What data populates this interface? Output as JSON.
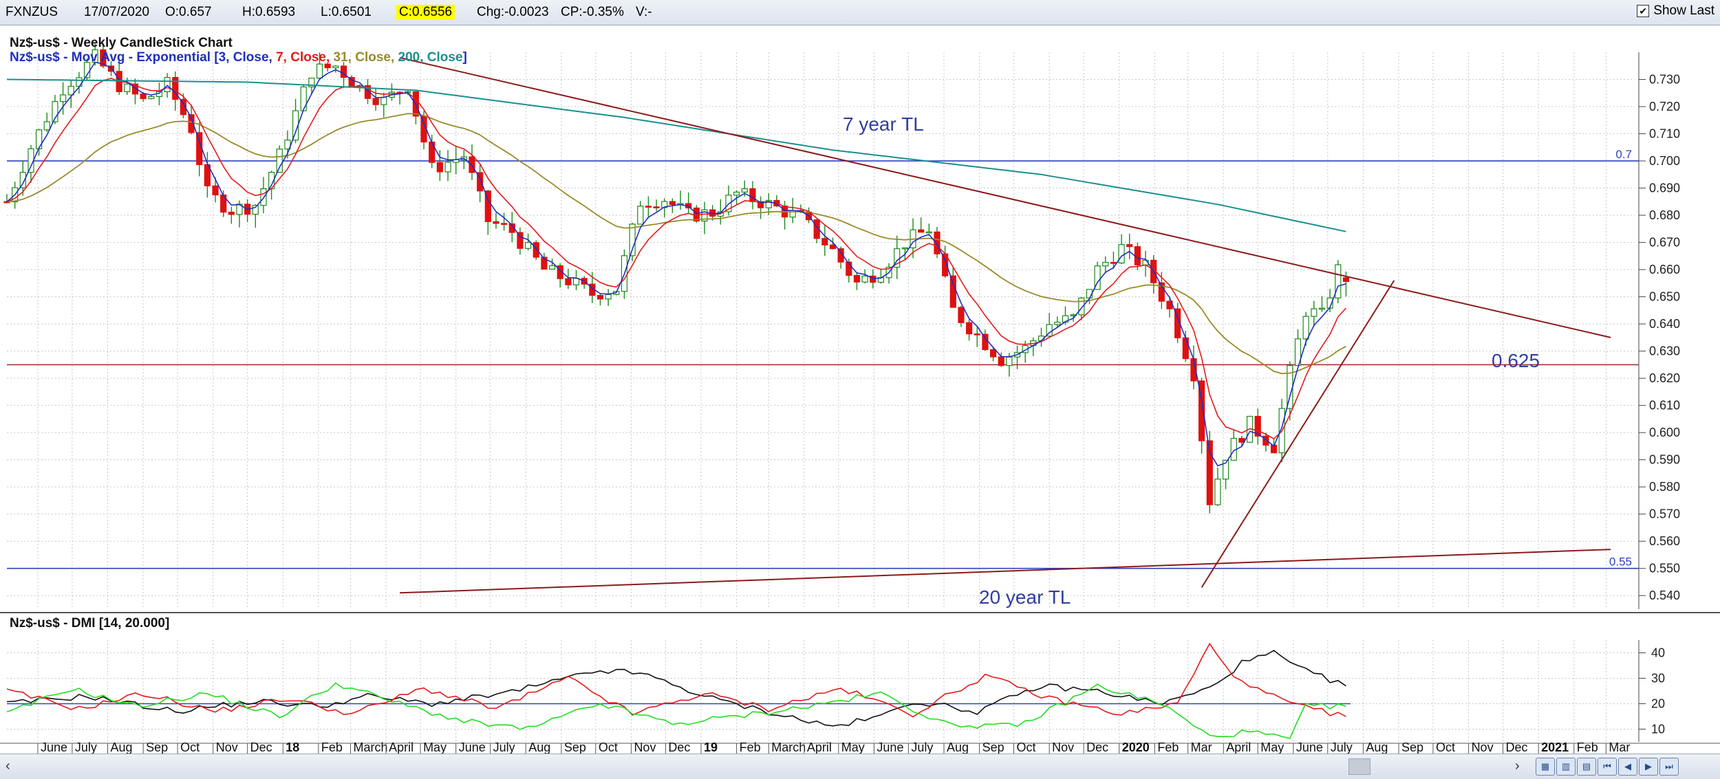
{
  "header": {
    "symbol": "FXNZUS",
    "date": "17/07/2020",
    "open": "O:0.657",
    "high": "H:0.6593",
    "low": "L:0.6501",
    "close": "C:0.6556",
    "change": "Chg:-0.0023",
    "change_pct": "CP:-0.35%",
    "volume": "V:-",
    "show_last_label": "Show Last"
  },
  "chart_data": [
    {
      "type": "candlestick",
      "title": "Nz$-us$ - Weekly CandleStick Chart",
      "subtitle": "Nz$-us$ - Mov Avg - Exponential [3, Close, 7, Close, 31, Close, 200, Close]",
      "ma_legend": [
        {
          "text": "Nz$-us$ - Mov Avg - Exponential [3, Close, ",
          "color": "#1f2fbf"
        },
        {
          "text": "7, Close, ",
          "color": "#e31a1a"
        },
        {
          "text": "31, Close, ",
          "color": "#9a8a2a"
        },
        {
          "text": "200, Close",
          "color": "#1a8f8f"
        },
        {
          "text": "]",
          "color": "#1f2fbf"
        }
      ],
      "ylim": [
        0.535,
        0.74
      ],
      "y_ticks": [
        0.54,
        0.55,
        0.56,
        0.57,
        0.58,
        0.59,
        0.6,
        0.61,
        0.62,
        0.63,
        0.64,
        0.65,
        0.66,
        0.67,
        0.68,
        0.69,
        0.7,
        0.71,
        0.72,
        0.73
      ],
      "y_tick_labels": [
        "0.540",
        "0.550",
        "0.560",
        "0.570",
        "0.580",
        "0.590",
        "0.600",
        "0.610",
        "0.620",
        "0.630",
        "0.640",
        "0.650",
        "0.660",
        "0.670",
        "0.680",
        "0.690",
        "0.700",
        "0.710",
        "0.720",
        "0.730"
      ],
      "x_start": "2017-05-05",
      "x_end": "2021-03-26",
      "x_tick_labels": [
        {
          "label": "June",
          "date": "2017-06-01"
        },
        {
          "label": "July",
          "date": "2017-07-01"
        },
        {
          "label": "Aug",
          "date": "2017-08-01"
        },
        {
          "label": "Sep",
          "date": "2017-09-01"
        },
        {
          "label": "Oct",
          "date": "2017-10-01"
        },
        {
          "label": "Nov",
          "date": "2017-11-01"
        },
        {
          "label": "Dec",
          "date": "2017-12-01"
        },
        {
          "label": "18",
          "date": "2018-01-01",
          "bold": true
        },
        {
          "label": "Feb",
          "date": "2018-02-01"
        },
        {
          "label": "March",
          "date": "2018-03-01"
        },
        {
          "label": "April",
          "date": "2018-04-01"
        },
        {
          "label": "May",
          "date": "2018-05-01"
        },
        {
          "label": "June",
          "date": "2018-06-01"
        },
        {
          "label": "July",
          "date": "2018-07-01"
        },
        {
          "label": "Aug",
          "date": "2018-08-01"
        },
        {
          "label": "Sep",
          "date": "2018-09-01"
        },
        {
          "label": "Oct",
          "date": "2018-10-01"
        },
        {
          "label": "Nov",
          "date": "2018-11-01"
        },
        {
          "label": "Dec",
          "date": "2018-12-01"
        },
        {
          "label": "19",
          "date": "2019-01-01",
          "bold": true
        },
        {
          "label": "Feb",
          "date": "2019-02-01"
        },
        {
          "label": "March",
          "date": "2019-03-01"
        },
        {
          "label": "April",
          "date": "2019-04-01"
        },
        {
          "label": "May",
          "date": "2019-05-01"
        },
        {
          "label": "June",
          "date": "2019-06-01"
        },
        {
          "label": "July",
          "date": "2019-07-01"
        },
        {
          "label": "Aug",
          "date": "2019-08-01"
        },
        {
          "label": "Sep",
          "date": "2019-09-01"
        },
        {
          "label": "Oct",
          "date": "2019-10-01"
        },
        {
          "label": "Nov",
          "date": "2019-11-01"
        },
        {
          "label": "Dec",
          "date": "2019-12-01"
        },
        {
          "label": "2020",
          "date": "2020-01-01",
          "bold": true
        },
        {
          "label": "Feb",
          "date": "2020-02-01"
        },
        {
          "label": "Mar",
          "date": "2020-03-01"
        },
        {
          "label": "April",
          "date": "2020-04-01"
        },
        {
          "label": "May",
          "date": "2020-05-01"
        },
        {
          "label": "June",
          "date": "2020-06-01"
        },
        {
          "label": "July",
          "date": "2020-07-01"
        },
        {
          "label": "Aug",
          "date": "2020-08-01"
        },
        {
          "label": "Sep",
          "date": "2020-09-01"
        },
        {
          "label": "Oct",
          "date": "2020-10-01"
        },
        {
          "label": "Nov",
          "date": "2020-11-01"
        },
        {
          "label": "Dec",
          "date": "2020-12-01"
        },
        {
          "label": "2021",
          "date": "2021-01-01",
          "bold": true
        },
        {
          "label": "Feb",
          "date": "2021-02-01"
        },
        {
          "label": "Mar",
          "date": "2021-03-01"
        }
      ],
      "close_path": [
        [
          "2017-05-05",
          0.685
        ],
        [
          "2017-05-26",
          0.705
        ],
        [
          "2017-06-23",
          0.727
        ],
        [
          "2017-07-21",
          0.738
        ],
        [
          "2017-08-11",
          0.728
        ],
        [
          "2017-09-01",
          0.722
        ],
        [
          "2017-09-22",
          0.728
        ],
        [
          "2017-10-13",
          0.712
        ],
        [
          "2017-10-27",
          0.688
        ],
        [
          "2017-11-17",
          0.682
        ],
        [
          "2017-12-08",
          0.684
        ],
        [
          "2017-12-29",
          0.702
        ],
        [
          "2018-01-26",
          0.733
        ],
        [
          "2018-02-16",
          0.735
        ],
        [
          "2018-03-09",
          0.727
        ],
        [
          "2018-03-30",
          0.722
        ],
        [
          "2018-04-20",
          0.728
        ],
        [
          "2018-05-11",
          0.697
        ],
        [
          "2018-06-08",
          0.702
        ],
        [
          "2018-06-29",
          0.678
        ],
        [
          "2018-07-20",
          0.674
        ],
        [
          "2018-08-17",
          0.66
        ],
        [
          "2018-09-07",
          0.656
        ],
        [
          "2018-09-28",
          0.651
        ],
        [
          "2018-10-19",
          0.653
        ],
        [
          "2018-11-09",
          0.685
        ],
        [
          "2018-11-30",
          0.686
        ],
        [
          "2018-12-21",
          0.68
        ],
        [
          "2019-01-11",
          0.681
        ],
        [
          "2019-02-01",
          0.688
        ],
        [
          "2019-03-01",
          0.684
        ],
        [
          "2019-03-29",
          0.679
        ],
        [
          "2019-04-26",
          0.667
        ],
        [
          "2019-05-17",
          0.655
        ],
        [
          "2019-06-07",
          0.66
        ],
        [
          "2019-06-28",
          0.67
        ],
        [
          "2019-07-19",
          0.675
        ],
        [
          "2019-08-09",
          0.645
        ],
        [
          "2019-08-30",
          0.636
        ],
        [
          "2019-09-20",
          0.627
        ],
        [
          "2019-10-11",
          0.631
        ],
        [
          "2019-11-01",
          0.64
        ],
        [
          "2019-11-22",
          0.642
        ],
        [
          "2019-12-13",
          0.66
        ],
        [
          "2020-01-03",
          0.668
        ],
        [
          "2020-01-24",
          0.661
        ],
        [
          "2020-02-14",
          0.645
        ],
        [
          "2020-03-06",
          0.622
        ],
        [
          "2020-03-20",
          0.575
        ],
        [
          "2020-04-03",
          0.592
        ],
        [
          "2020-04-24",
          0.603
        ],
        [
          "2020-05-15",
          0.595
        ],
        [
          "2020-05-29",
          0.622
        ],
        [
          "2020-06-12",
          0.645
        ],
        [
          "2020-06-26",
          0.643
        ],
        [
          "2020-07-10",
          0.66
        ],
        [
          "2020-07-17",
          0.6556
        ]
      ],
      "ema_200_path": [
        [
          "2017-05-05",
          0.73
        ],
        [
          "2017-12-01",
          0.729
        ],
        [
          "2018-04-27",
          0.726
        ],
        [
          "2018-10-26",
          0.716
        ],
        [
          "2019-04-26",
          0.704
        ],
        [
          "2019-10-25",
          0.695
        ],
        [
          "2020-03-27",
          0.684
        ],
        [
          "2020-07-17",
          0.674
        ]
      ],
      "horizontal_lines": [
        {
          "value": 0.7,
          "label": "0.7",
          "color": "#2f3fbf"
        },
        {
          "value": 0.625,
          "label": "0.625",
          "color": "#a83232"
        },
        {
          "value": 0.55,
          "label": "0.55",
          "color": "#2f3fbf"
        }
      ],
      "trendlines": [
        {
          "label": "7 year TL",
          "from": [
            "2018-04-13",
            0.738
          ],
          "to": [
            "2021-03-05",
            0.635
          ],
          "color": "#8b1a1a"
        },
        {
          "label": "20 year TL",
          "from": [
            "2018-04-13",
            0.541
          ],
          "to": [
            "2021-03-05",
            0.557
          ],
          "color": "#8b1a1a"
        },
        {
          "label": "",
          "from": [
            "2020-03-13",
            0.543
          ],
          "to": [
            "2020-08-28",
            0.656
          ],
          "color": "#8b1a1a"
        }
      ],
      "annotations": {
        "tl7": "7 year TL",
        "tl20": "20 year TL",
        "level": "0.625"
      }
    },
    {
      "type": "line",
      "title": "Nz$-us$ - DMI [14, 20.000]",
      "ylim": [
        5,
        45
      ],
      "y_ticks": [
        10,
        20,
        30,
        40
      ],
      "y_tick_labels": [
        "10",
        "20",
        "30",
        "40"
      ],
      "reference_line": 20,
      "series": [
        {
          "color": "#111111",
          "values": [
            [
              "2017-05-05",
              20
            ],
            [
              "2017-07-14",
              23
            ],
            [
              "2017-09-29",
              17
            ],
            [
              "2017-12-08",
              21
            ],
            [
              "2018-02-02",
              19
            ],
            [
              "2018-03-16",
              23
            ],
            [
              "2018-05-11",
              20
            ],
            [
              "2018-07-13",
              24
            ],
            [
              "2018-09-07",
              30
            ],
            [
              "2018-10-05",
              33
            ],
            [
              "2018-11-09",
              32
            ],
            [
              "2019-01-11",
              22
            ],
            [
              "2019-03-08",
              16
            ],
            [
              "2019-04-26",
              11
            ],
            [
              "2019-06-07",
              15
            ],
            [
              "2019-07-05",
              21
            ],
            [
              "2019-08-30",
              17
            ],
            [
              "2019-10-25",
              27
            ],
            [
              "2019-12-13",
              25
            ],
            [
              "2020-02-07",
              20
            ],
            [
              "2020-03-20",
              26
            ],
            [
              "2020-04-17",
              36
            ],
            [
              "2020-05-15",
              40
            ],
            [
              "2020-06-05",
              34
            ],
            [
              "2020-07-17",
              27
            ]
          ]
        },
        {
          "color": "#e31a1a",
          "values": [
            [
              "2017-05-05",
              25
            ],
            [
              "2017-07-07",
              18
            ],
            [
              "2017-09-01",
              24
            ],
            [
              "2017-11-03",
              17
            ],
            [
              "2018-01-05",
              22
            ],
            [
              "2018-03-02",
              16
            ],
            [
              "2018-05-04",
              26
            ],
            [
              "2018-07-06",
              18
            ],
            [
              "2018-09-07",
              30
            ],
            [
              "2018-11-02",
              16
            ],
            [
              "2019-01-04",
              24
            ],
            [
              "2019-03-01",
              18
            ],
            [
              "2019-05-03",
              26
            ],
            [
              "2019-07-05",
              16
            ],
            [
              "2019-09-06",
              31
            ],
            [
              "2019-11-01",
              22
            ],
            [
              "2020-01-03",
              16
            ],
            [
              "2020-02-21",
              20
            ],
            [
              "2020-03-20",
              43
            ],
            [
              "2020-04-17",
              28
            ],
            [
              "2020-06-05",
              19
            ],
            [
              "2020-07-17",
              15
            ]
          ]
        },
        {
          "color": "#22dd22",
          "values": [
            [
              "2017-05-05",
              16
            ],
            [
              "2017-06-30",
              26
            ],
            [
              "2017-08-25",
              19
            ],
            [
              "2017-10-27",
              24
            ],
            [
              "2017-12-29",
              15
            ],
            [
              "2018-02-16",
              28
            ],
            [
              "2018-04-13",
              20
            ],
            [
              "2018-06-08",
              13
            ],
            [
              "2018-08-03",
              10
            ],
            [
              "2018-10-05",
              20
            ],
            [
              "2018-12-07",
              12
            ],
            [
              "2019-02-01",
              15
            ],
            [
              "2019-04-05",
              19
            ],
            [
              "2019-06-07",
              24
            ],
            [
              "2019-08-02",
              12
            ],
            [
              "2019-10-04",
              11
            ],
            [
              "2019-12-13",
              27
            ],
            [
              "2020-02-07",
              20
            ],
            [
              "2020-03-20",
              7
            ],
            [
              "2020-04-24",
              9
            ],
            [
              "2020-05-29",
              6
            ],
            [
              "2020-06-12",
              19
            ],
            [
              "2020-07-17",
              19
            ]
          ]
        }
      ]
    }
  ]
}
